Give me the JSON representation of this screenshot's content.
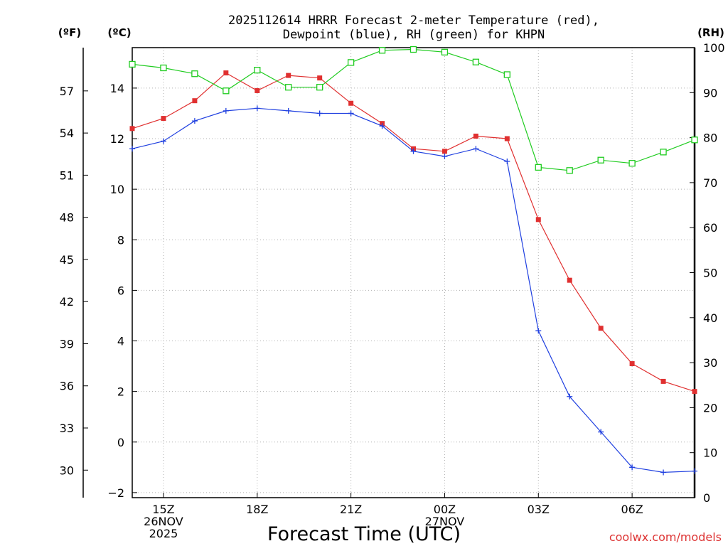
{
  "chart_data": {
    "type": "line",
    "title_line1": "2025112614 HRRR Forecast 2-meter Temperature (red),",
    "title_line2": "Dewpoint (blue), RH (green) for KHPN",
    "xlabel": "Forecast Time (UTC)",
    "unit_labels": {
      "fahrenheit": "(ºF)",
      "celsius": "(ºC)",
      "rh": "(RH)"
    },
    "watermark": "coolwx.com/models",
    "x": [
      14,
      15,
      16,
      17,
      18,
      19,
      20,
      21,
      22,
      23,
      24,
      25,
      26,
      27,
      28,
      29,
      30,
      31,
      32
    ],
    "xlim": [
      14,
      32
    ],
    "ylim_celsius": [
      -2.2,
      15.6
    ],
    "ylim_rh": [
      0,
      100
    ],
    "x_ticks": [
      {
        "x": 15,
        "lines": [
          "15Z",
          "26NOV",
          "2025"
        ]
      },
      {
        "x": 18,
        "lines": [
          "18Z"
        ]
      },
      {
        "x": 21,
        "lines": [
          "21Z"
        ]
      },
      {
        "x": 24,
        "lines": [
          "00Z",
          "27NOV"
        ]
      },
      {
        "x": 27,
        "lines": [
          "03Z"
        ]
      },
      {
        "x": 30,
        "lines": [
          "06Z"
        ]
      }
    ],
    "celsius_ticks": [
      -2,
      0,
      2,
      4,
      6,
      8,
      10,
      12,
      14
    ],
    "fahrenheit_ticks": [
      30,
      33,
      36,
      39,
      42,
      45,
      48,
      51,
      54,
      57
    ],
    "rh_ticks": [
      0,
      10,
      20,
      30,
      40,
      50,
      60,
      70,
      80,
      90,
      100
    ],
    "series": [
      {
        "name": "Temperature",
        "unit": "C",
        "color": "#e03030",
        "marker": "filled-square",
        "values": [
          12.4,
          12.8,
          13.5,
          14.6,
          13.9,
          14.5,
          14.4,
          13.4,
          12.6,
          11.6,
          11.5,
          12.1,
          12.0,
          8.8,
          6.4,
          4.5,
          3.1,
          2.4,
          2.0
        ]
      },
      {
        "name": "Dewpoint",
        "unit": "C",
        "color": "#2040e0",
        "marker": "plus",
        "values": [
          11.6,
          11.9,
          12.7,
          13.1,
          13.2,
          13.1,
          13.0,
          13.0,
          12.5,
          11.5,
          11.3,
          11.6,
          11.1,
          4.4,
          1.8,
          0.4,
          -1.0,
          -1.2,
          -1.15
        ]
      },
      {
        "name": "RH",
        "unit": "%",
        "color": "#20cc20",
        "marker": "open-square",
        "values": [
          96.3,
          95.5,
          94.2,
          90.4,
          95.0,
          91.2,
          91.2,
          96.7,
          99.4,
          99.6,
          99.0,
          96.8,
          94.0,
          73.4,
          72.7,
          75.0,
          74.3,
          76.8,
          79.5
        ]
      }
    ]
  }
}
